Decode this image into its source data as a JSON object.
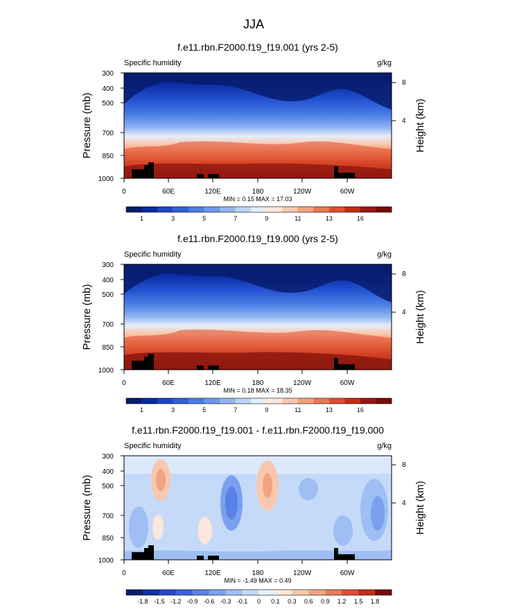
{
  "figure_title": "JJA",
  "chart_data": [
    {
      "type": "heatmap",
      "title": "f.e11.rbn.F2000.f19_f19.001 (yrs 2-5)",
      "left_label": "Specific humidity",
      "right_label": "g/kg",
      "ylabel": "Pressure (mb)",
      "y2label": "Height (km)",
      "yticks": [
        "300",
        "400",
        "500",
        "700",
        "850",
        "1000"
      ],
      "yticks_values": [
        300,
        400,
        500,
        700,
        850,
        1000
      ],
      "y2ticks": [
        "8",
        "4"
      ],
      "y2ticks_values": [
        8,
        4
      ],
      "xticks": [
        "0",
        "60E",
        "120E",
        "180",
        "120W",
        "60W"
      ],
      "xticks_values": [
        0,
        60,
        120,
        180,
        240,
        300
      ],
      "xlim": [
        0,
        360
      ],
      "ylim": [
        1000,
        300
      ],
      "stats": "MIN =   0.15   MAX =  17.03",
      "min": 0.15,
      "max": 17.03,
      "colorbar_labels": [
        "1",
        "3",
        "5",
        "7",
        "9",
        "11",
        "13",
        "16"
      ],
      "colorbar_colors": [
        "#061b6c",
        "#0a2aa0",
        "#1a46c6",
        "#2e61da",
        "#4a7ee6",
        "#6c98ed",
        "#92b5f2",
        "#bcd4f7",
        "#e4eefb",
        "#fde7dc",
        "#f9c6ac",
        "#f3a07e",
        "#ec7852",
        "#e04e2c",
        "#c22c18",
        "#9a1510",
        "#7a0a08"
      ]
    },
    {
      "type": "heatmap",
      "title": "f.e11.rbn.F2000.f19_f19.000 (yrs 2-5)",
      "left_label": "Specific humidity",
      "right_label": "g/kg",
      "ylabel": "Pressure (mb)",
      "y2label": "Height (km)",
      "yticks": [
        "300",
        "400",
        "500",
        "700",
        "850",
        "1000"
      ],
      "yticks_values": [
        300,
        400,
        500,
        700,
        850,
        1000
      ],
      "y2ticks": [
        "8",
        "4"
      ],
      "y2ticks_values": [
        8,
        4
      ],
      "xticks": [
        "0",
        "60E",
        "120E",
        "180",
        "120W",
        "60W"
      ],
      "xticks_values": [
        0,
        60,
        120,
        180,
        240,
        300
      ],
      "xlim": [
        0,
        360
      ],
      "ylim": [
        1000,
        300
      ],
      "stats": "MIN =   0.18   MAX =  18.35",
      "min": 0.18,
      "max": 18.35,
      "colorbar_labels": [
        "1",
        "3",
        "5",
        "7",
        "9",
        "11",
        "13",
        "16"
      ],
      "colorbar_colors": [
        "#061b6c",
        "#0a2aa0",
        "#1a46c6",
        "#2e61da",
        "#4a7ee6",
        "#6c98ed",
        "#92b5f2",
        "#bcd4f7",
        "#e4eefb",
        "#fde7dc",
        "#f9c6ac",
        "#f3a07e",
        "#ec7852",
        "#e04e2c",
        "#c22c18",
        "#9a1510",
        "#7a0a08"
      ]
    },
    {
      "type": "heatmap",
      "title": "f.e11.rbn.F2000.f19_f19.001 - f.e11.rbn.F2000.f19_f19.000",
      "left_label": "Specific humidity",
      "right_label": "g/kg",
      "ylabel": "Pressure (mb)",
      "y2label": "Height (km)",
      "yticks": [
        "300",
        "400",
        "500",
        "700",
        "850",
        "1000"
      ],
      "yticks_values": [
        300,
        400,
        500,
        700,
        850,
        1000
      ],
      "y2ticks": [
        "8",
        "4"
      ],
      "y2ticks_values": [
        8,
        4
      ],
      "xticks": [
        "0",
        "60E",
        "120E",
        "180",
        "120W",
        "60W"
      ],
      "xticks_values": [
        0,
        60,
        120,
        180,
        240,
        300
      ],
      "xlim": [
        0,
        360
      ],
      "ylim": [
        1000,
        300
      ],
      "stats": "MIN =  -1.49   MAX =   0.49",
      "min": -1.49,
      "max": 0.49,
      "colorbar_labels": [
        "-1.8",
        "-1.5",
        "-1.2",
        "-0.9",
        "-0.6",
        "-0.3",
        "-0.1",
        "0",
        "0.1",
        "0.3",
        "0.6",
        "0.9",
        "1.2",
        "1.5",
        "1.8"
      ],
      "colorbar_colors": [
        "#0a1c6a",
        "#1230a8",
        "#2348cc",
        "#3a64dc",
        "#5882e6",
        "#7aa0ee",
        "#9fbef4",
        "#c5daf8",
        "#e6f0fb",
        "#fbe7dc",
        "#f7c8ae",
        "#f1a484",
        "#e97c58",
        "#dc5032",
        "#bf2d1a",
        "#7a0a08"
      ]
    }
  ]
}
